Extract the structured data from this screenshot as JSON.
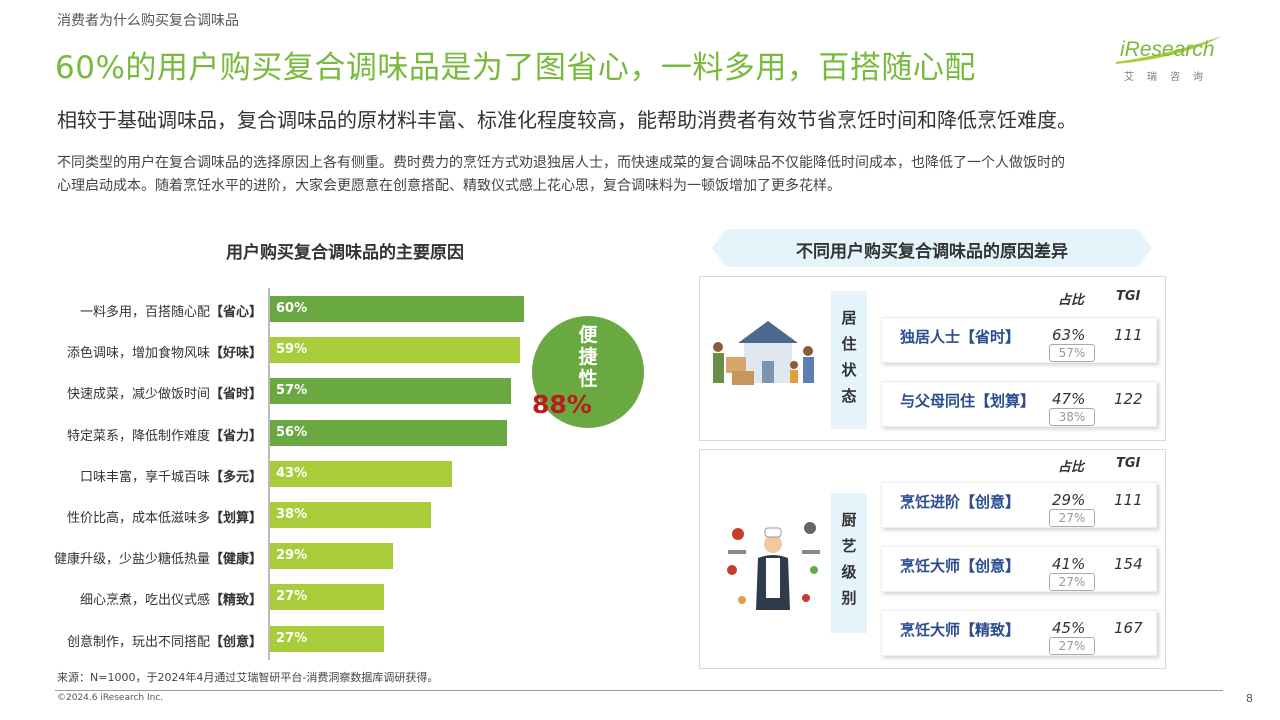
{
  "header": {
    "kicker": "消费者为什么购买复合调味品",
    "headline": "60%的用户购买复合调味品是为了图省心，一料多用，百搭随心配",
    "logo_text": "iResearch",
    "logo_sub": "艾瑞咨询",
    "subhead": "相较于基础调味品，复合调味品的原材料丰富、标准化程度较高，能帮助消费者有效节省烹饪时间和降低烹饪难度。",
    "body_line1": "不同类型的用户在复合调味品的选择原因上各有侧重。费时费力的烹饪方式劝退独居人士，而快速成菜的复合调味品不仅能降低时间成本，也降低了一个人做饭时的",
    "body_line2": "心理启动成本。随着烹饪水平的进阶，大家会更愿意在创意搭配、精致仪式感上花心思，复合调味料为一顿饭增加了更多花样。"
  },
  "colors": {
    "accent_green": "#79b93c",
    "bar_dark": "#6aa842",
    "bar_light": "#a9cd3a",
    "pct_red": "#b81c1c",
    "name_blue": "#2a4d8f",
    "banner_bg": "#e5f4fa"
  },
  "chart_data": [
    {
      "type": "bar",
      "title": "用户购买复合调味品的主要原因",
      "orientation": "horizontal",
      "categories": [
        {
          "text": "一料多用，百搭随心配",
          "tag": "【省心】"
        },
        {
          "text": "添色调味，增加食物风味",
          "tag": "【好味】"
        },
        {
          "text": "快速成菜，减少做饭时间",
          "tag": "【省时】"
        },
        {
          "text": "特定菜系，降低制作难度",
          "tag": "【省力】"
        },
        {
          "text": "口味丰富，享千城百味",
          "tag": "【多元】"
        },
        {
          "text": "性价比高，成本低滋味多",
          "tag": "【划算】"
        },
        {
          "text": "健康升级，少盐少糖低热量",
          "tag": "【健康】"
        },
        {
          "text": "细心烹煮，吃出仪式感",
          "tag": "【精致】"
        },
        {
          "text": "创意制作，玩出不同搭配",
          "tag": "【创意】"
        }
      ],
      "values": [
        60,
        59,
        57,
        56,
        43,
        38,
        29,
        27,
        27
      ],
      "value_labels": [
        "60%",
        "59%",
        "57%",
        "56%",
        "43%",
        "38%",
        "29%",
        "27%",
        "27%"
      ],
      "bar_colors": [
        "#6aa842",
        "#a9cd3a",
        "#6aa842",
        "#6aa842",
        "#a9cd3a",
        "#a9cd3a",
        "#a9cd3a",
        "#a9cd3a",
        "#a9cd3a"
      ],
      "callout": {
        "label_chars": [
          "便",
          "捷",
          "性"
        ],
        "value": "88%"
      }
    },
    {
      "type": "table",
      "title": "不同用户购买复合调味品的原因差异",
      "col_share": "占比",
      "col_tgi": "TGI",
      "groups": [
        {
          "label_chars": [
            "居",
            "住",
            "状",
            "态"
          ],
          "rows": [
            {
              "name": "独居人士【省时】",
              "share": "63%",
              "base": "57%",
              "tgi": "111"
            },
            {
              "name": "与父母同住【划算】",
              "share": "47%",
              "base": "38%",
              "tgi": "122"
            }
          ]
        },
        {
          "label_chars": [
            "厨",
            "艺",
            "级",
            "别"
          ],
          "rows": [
            {
              "name": "烹饪进阶【创意】",
              "share": "29%",
              "base": "27%",
              "tgi": "111"
            },
            {
              "name": "烹饪大师【创意】",
              "share": "41%",
              "base": "27%",
              "tgi": "154"
            },
            {
              "name": "烹饪大师【精致】",
              "share": "45%",
              "base": "27%",
              "tgi": "167"
            }
          ]
        }
      ]
    }
  ],
  "footer": {
    "source": "来源：N=1000，于2024年4月通过艾瑞智研平台-消费洞察数据库调研获得。",
    "copyright": "©2024.6 iResearch Inc.",
    "page": "8"
  }
}
